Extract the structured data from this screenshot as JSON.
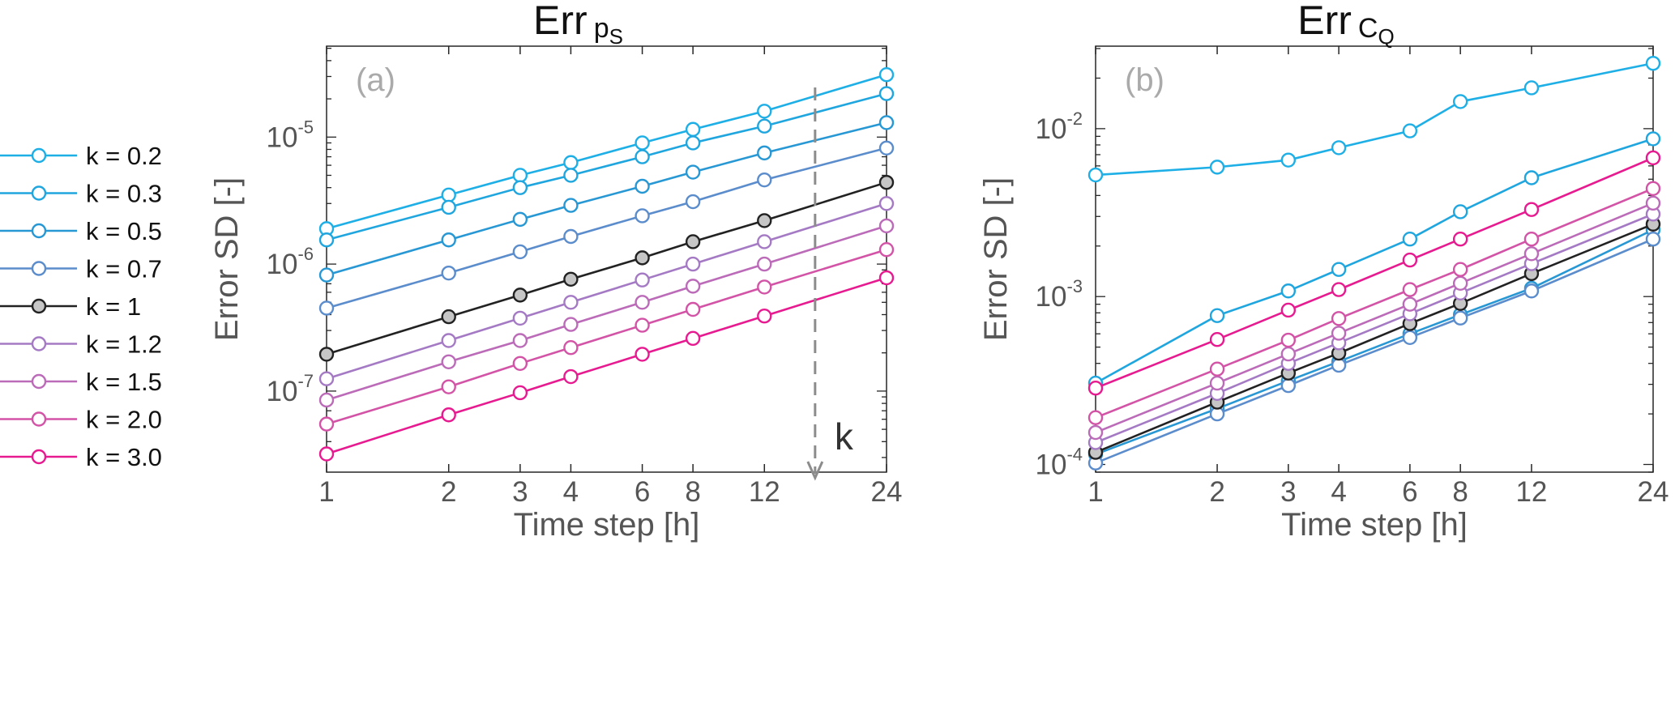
{
  "chart_data": [
    {
      "type": "line",
      "panel": "(a)",
      "title": "Err",
      "title_subscript": "p",
      "title_subsubscript": "S",
      "xlabel": "Time step [h]",
      "ylabel": "Error SD [-]",
      "xscale": "log",
      "yscale": "log",
      "x": [
        1,
        2,
        3,
        4,
        6,
        8,
        12,
        24
      ],
      "xticks": [
        "1",
        "2",
        "3",
        "4",
        "6",
        "8",
        "12",
        "24"
      ],
      "yticks": [
        {
          "value": 1e-07,
          "base": "10",
          "exp": "-7"
        },
        {
          "value": 1e-06,
          "base": "10",
          "exp": "-6"
        },
        {
          "value": 1e-05,
          "base": "10",
          "exp": "-5"
        }
      ],
      "ylim": [
        2.3e-08,
        5.2e-05
      ],
      "grid": false,
      "annotation": {
        "text": "k",
        "arrow": "dashed-down",
        "x": 16
      },
      "series": [
        {
          "name": "k = 0.2",
          "color": "#1eafe6",
          "values": [
            1.9e-06,
            3.5e-06,
            5e-06,
            6.3e-06,
            9e-06,
            1.15e-05,
            1.6e-05,
            3.1e-05
          ]
        },
        {
          "name": "k = 0.3",
          "color": "#20a6df",
          "values": [
            1.55e-06,
            2.8e-06,
            4e-06,
            5e-06,
            7e-06,
            9e-06,
            1.22e-05,
            2.2e-05
          ]
        },
        {
          "name": "k = 0.5",
          "color": "#2898d4",
          "values": [
            8.2e-07,
            1.55e-06,
            2.25e-06,
            2.9e-06,
            4.1e-06,
            5.3e-06,
            7.5e-06,
            1.3e-05
          ]
        },
        {
          "name": "k = 0.7",
          "color": "#5b8ccc",
          "values": [
            4.5e-07,
            8.5e-07,
            1.25e-06,
            1.65e-06,
            2.4e-06,
            3.1e-06,
            4.6e-06,
            8.2e-06
          ]
        },
        {
          "name": "k = 1",
          "color": "#222222",
          "fill": "#c6c6c6",
          "values": [
            1.95e-07,
            3.85e-07,
            5.7e-07,
            7.6e-07,
            1.12e-06,
            1.5e-06,
            2.2e-06,
            4.4e-06
          ]
        },
        {
          "name": "k = 1.2",
          "color": "#a57ac4",
          "values": [
            1.25e-07,
            2.5e-07,
            3.75e-07,
            5e-07,
            7.5e-07,
            1e-06,
            1.5e-06,
            3e-06
          ]
        },
        {
          "name": "k = 1.5",
          "color": "#bb6bb8",
          "values": [
            8.5e-08,
            1.7e-07,
            2.5e-07,
            3.35e-07,
            5e-07,
            6.7e-07,
            1e-06,
            2e-06
          ]
        },
        {
          "name": "k = 2.0",
          "color": "#d354a6",
          "values": [
            5.5e-08,
            1.08e-07,
            1.65e-07,
            2.2e-07,
            3.3e-07,
            4.4e-07,
            6.6e-07,
            1.3e-06
          ]
        },
        {
          "name": "k = 3.0",
          "color": "#e71a90",
          "values": [
            3.2e-08,
            6.5e-08,
            9.7e-08,
            1.3e-07,
            1.95e-07,
            2.6e-07,
            3.9e-07,
            7.8e-07
          ]
        }
      ]
    },
    {
      "type": "line",
      "panel": "(b)",
      "title": "Err",
      "title_subscript": "C",
      "title_subsubscript": "Q",
      "xlabel": "Time step [h]",
      "ylabel": "Error SD [-]",
      "xscale": "log",
      "yscale": "log",
      "x": [
        1,
        2,
        3,
        4,
        6,
        8,
        12,
        24
      ],
      "xticks": [
        "1",
        "2",
        "3",
        "4",
        "6",
        "8",
        "12",
        "24"
      ],
      "yticks": [
        {
          "value": 0.0001,
          "base": "10",
          "exp": "-4"
        },
        {
          "value": 0.001,
          "base": "10",
          "exp": "-3"
        },
        {
          "value": 0.01,
          "base": "10",
          "exp": "-2"
        }
      ],
      "ylim": [
        9e-05,
        0.031
      ],
      "grid": false,
      "series": [
        {
          "name": "k = 0.2",
          "color": "#1eafe6",
          "values": [
            0.0053,
            0.0059,
            0.0065,
            0.0077,
            0.0097,
            0.0145,
            0.0175,
            0.0245
          ]
        },
        {
          "name": "k = 0.3",
          "color": "#20a6df",
          "values": [
            0.000305,
            0.00077,
            0.00108,
            0.00145,
            0.0022,
            0.0032,
            0.0051,
            0.0087
          ]
        },
        {
          "name": "k = 0.5",
          "color": "#2898d4",
          "values": [
            0.000115,
            0.000215,
            0.000315,
            0.00041,
            0.0006,
            0.00078,
            0.00112,
            0.0025
          ]
        },
        {
          "name": "k = 0.7",
          "color": "#5b8ccc",
          "values": [
            0.000102,
            0.0002,
            0.000295,
            0.00039,
            0.00057,
            0.000745,
            0.00108,
            0.0022
          ]
        },
        {
          "name": "k = 1",
          "color": "#222222",
          "fill": "#c6c6c6",
          "values": [
            0.000118,
            0.000235,
            0.00035,
            0.00046,
            0.00069,
            0.00091,
            0.00137,
            0.0027
          ]
        },
        {
          "name": "k = 1.2",
          "color": "#a57ac4",
          "values": [
            0.000135,
            0.000265,
            0.0004,
            0.00053,
            0.00079,
            0.00105,
            0.00157,
            0.0031
          ]
        },
        {
          "name": "k = 1.5",
          "color": "#bb6bb8",
          "values": [
            0.000155,
            0.000305,
            0.000455,
            0.000605,
            0.0009,
            0.0012,
            0.0018,
            0.0036
          ]
        },
        {
          "name": "k = 2.0",
          "color": "#d354a6",
          "values": [
            0.00019,
            0.00037,
            0.00055,
            0.00074,
            0.0011,
            0.00145,
            0.0022,
            0.0044
          ]
        },
        {
          "name": "k = 3.0",
          "color": "#e71a90",
          "values": [
            0.000285,
            0.000555,
            0.00083,
            0.0011,
            0.00165,
            0.0022,
            0.0033,
            0.0067
          ]
        }
      ]
    }
  ]
}
